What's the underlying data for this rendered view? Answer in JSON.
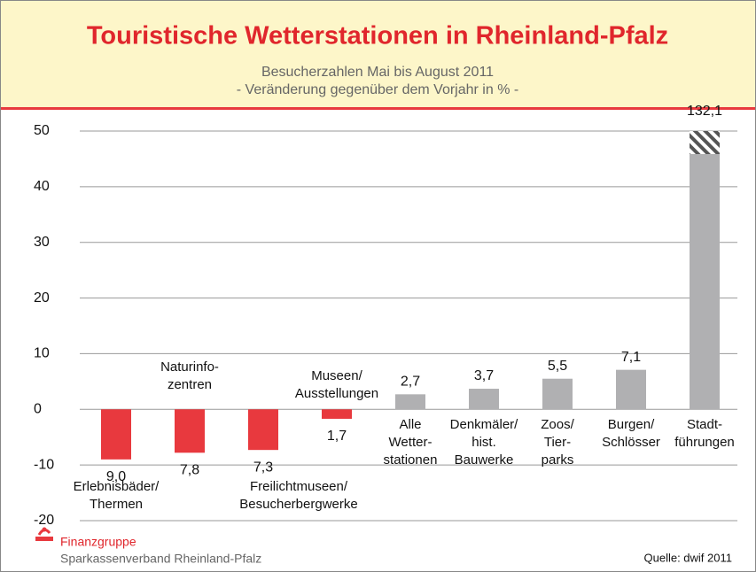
{
  "chart_data": {
    "type": "bar",
    "title": "Touristische Wetterstationen in Rheinland-Pfalz",
    "subtitle": [
      "Besucherzahlen Mai bis August 2011",
      "- Veränderung gegenüber dem Vorjahr in % -"
    ],
    "categories": [
      [
        "Erlebnisbäder/",
        "Thermen"
      ],
      [
        "Naturinfo-",
        "zentren"
      ],
      [
        "Freilichtmuseen/",
        "Besucherbergwerke"
      ],
      [
        "Museen/",
        "Ausstellungen"
      ],
      [
        "Alle",
        "Wetter-",
        "stationen"
      ],
      [
        "Denkmäler/",
        "hist.",
        "Bauwerke"
      ],
      [
        "Zoos/",
        "Tier-",
        "parks"
      ],
      [
        "Burgen/",
        "Schlösser"
      ],
      [
        "Stadt-",
        "führungen"
      ]
    ],
    "values": [
      -9.0,
      -7.8,
      -7.3,
      -1.7,
      2.7,
      3.7,
      5.5,
      7.1,
      132.1
    ],
    "value_labels": [
      "9,0",
      "7,8",
      "7,3",
      "1,7",
      "2,7",
      "3,7",
      "5,5",
      "7,1",
      "132,1"
    ],
    "colors": {
      "negative": "#e8393e",
      "positive": "#b0b0b2"
    },
    "ylim": [
      -20,
      50
    ],
    "yticks": [
      -20,
      -10,
      0,
      10,
      20,
      30,
      40,
      50
    ],
    "grid": true
  },
  "footer": {
    "org_group": "Finanzgruppe",
    "org_name": "Sparkassenverband Rheinland-Pfalz",
    "source": "Quelle: dwif 2011"
  }
}
